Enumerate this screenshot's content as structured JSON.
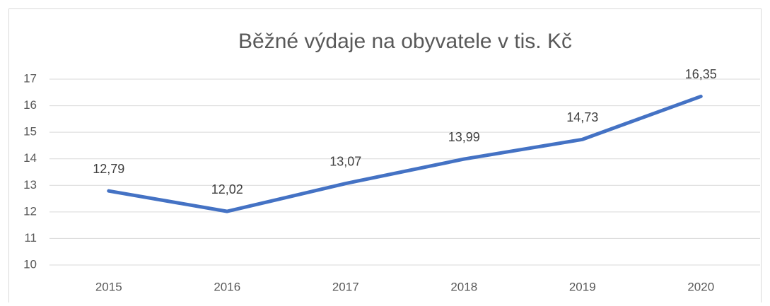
{
  "chart_data": {
    "type": "line",
    "title": "Běžné výdaje na obyvatele v tis. Kč",
    "categories": [
      "2015",
      "2016",
      "2017",
      "2018",
      "2019",
      "2020"
    ],
    "values": [
      12.79,
      12.02,
      13.07,
      13.99,
      14.73,
      16.35
    ],
    "value_labels": [
      "12,79",
      "12,02",
      "13,07",
      "13,99",
      "14,73",
      "16,35"
    ],
    "color": "#4472c4",
    "ylim": [
      10,
      17
    ],
    "yticks": [
      10,
      11,
      12,
      13,
      14,
      15,
      16,
      17
    ],
    "grid": true
  }
}
